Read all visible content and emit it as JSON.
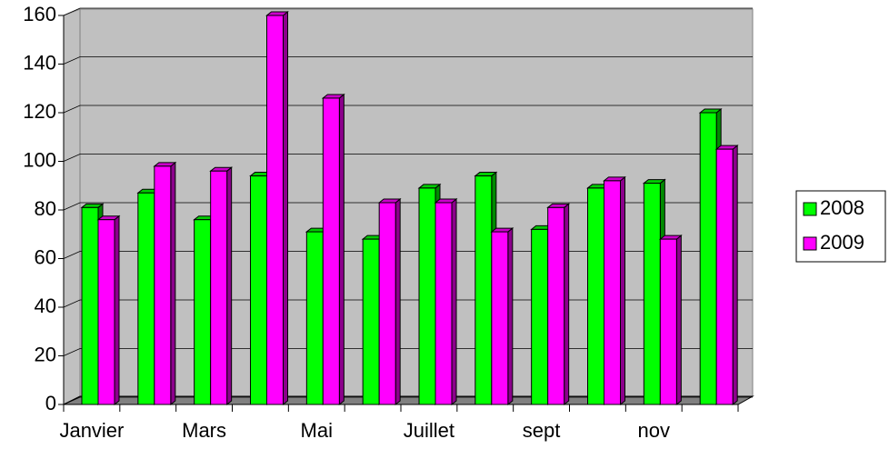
{
  "chart_data": {
    "type": "bar",
    "categories": [
      "Janvier",
      null,
      "Mars",
      null,
      "Mai",
      null,
      "Juillet",
      null,
      "sept",
      null,
      "nov",
      null
    ],
    "series": [
      {
        "name": "2008",
        "color": "#00ff00",
        "values": [
          81,
          87,
          76,
          94,
          71,
          68,
          89,
          94,
          72,
          89,
          91,
          120
        ]
      },
      {
        "name": "2009",
        "color": "#ff00ff",
        "values": [
          76,
          98,
          96,
          160,
          126,
          83,
          83,
          71,
          81,
          92,
          68,
          105
        ]
      }
    ],
    "ylim": [
      0,
      160
    ],
    "yticks": [
      0,
      20,
      40,
      60,
      80,
      100,
      120,
      140,
      160
    ],
    "grid": true,
    "legend": "right"
  }
}
